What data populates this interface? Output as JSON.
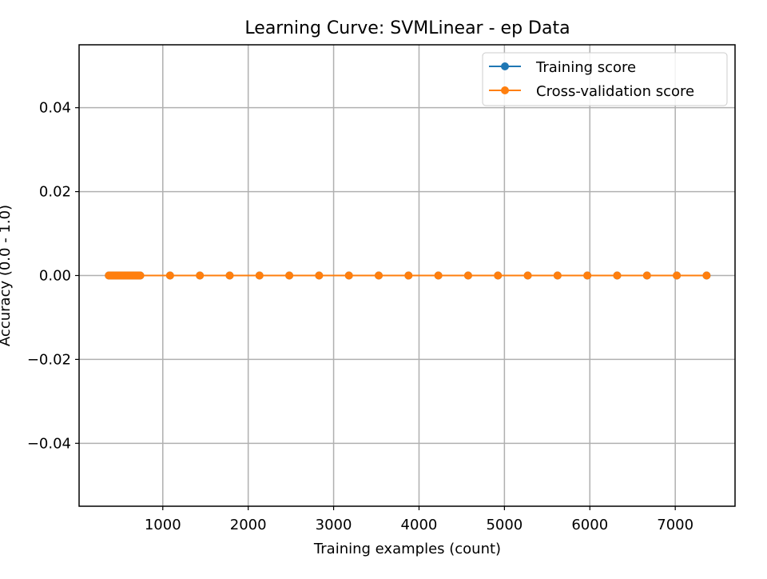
{
  "chart_data": {
    "type": "line",
    "title": "Learning Curve: SVMLinear - ep Data",
    "xlabel": "Training examples (count)",
    "ylabel": "Accuracy (0.0 - 1.0)",
    "xlim": [
      20,
      7700
    ],
    "ylim": [
      -0.055,
      0.055
    ],
    "xticks": [
      1000,
      2000,
      3000,
      4000,
      5000,
      6000,
      7000
    ],
    "xtick_labels": [
      "1000",
      "2000",
      "3000",
      "4000",
      "5000",
      "6000",
      "7000"
    ],
    "yticks": [
      -0.04,
      -0.02,
      0.0,
      0.02,
      0.04
    ],
    "ytick_labels": [
      "−0.04",
      "−0.02",
      "0.00",
      "0.02",
      "0.04"
    ],
    "grid": true,
    "legend_position": "top-right",
    "x": [
      368,
      386,
      403,
      421,
      438,
      456,
      473,
      491,
      508,
      526,
      543,
      561,
      578,
      596,
      613,
      631,
      648,
      666,
      683,
      701,
      718,
      736,
      1085,
      1434,
      1783,
      2132,
      2481,
      2830,
      3179,
      3528,
      3877,
      4226,
      4575,
      4924,
      5273,
      5622,
      5971,
      6320,
      6669,
      7018,
      7367
    ],
    "series": [
      {
        "name": "Training score",
        "color": "#1f77b4",
        "marker": "circle",
        "values": [
          0,
          0,
          0,
          0,
          0,
          0,
          0,
          0,
          0,
          0,
          0,
          0,
          0,
          0,
          0,
          0,
          0,
          0,
          0,
          0,
          0,
          0,
          0,
          0,
          0,
          0,
          0,
          0,
          0,
          0,
          0,
          0,
          0,
          0,
          0,
          0,
          0,
          0,
          0,
          0,
          0
        ]
      },
      {
        "name": "Cross-validation score",
        "color": "#ff7f0e",
        "marker": "circle",
        "values": [
          0,
          0,
          0,
          0,
          0,
          0,
          0,
          0,
          0,
          0,
          0,
          0,
          0,
          0,
          0,
          0,
          0,
          0,
          0,
          0,
          0,
          0,
          0,
          0,
          0,
          0,
          0,
          0,
          0,
          0,
          0,
          0,
          0,
          0,
          0,
          0,
          0,
          0,
          0,
          0,
          0
        ]
      }
    ]
  }
}
